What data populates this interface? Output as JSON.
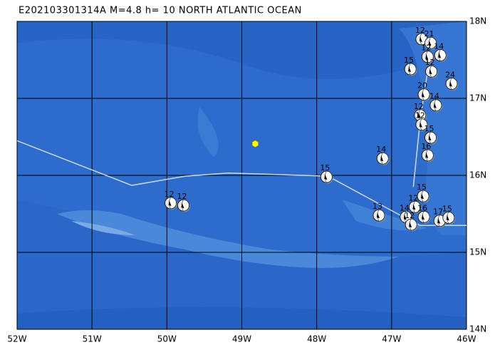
{
  "map": {
    "title": "E202103301314A M=4.8 h= 10 NORTH ATLANTIC OCEAN",
    "lon_range": [
      -52,
      -46
    ],
    "lat_range": [
      14,
      18
    ],
    "lon_ticks": [
      {
        "value": -52,
        "label": "52W"
      },
      {
        "value": -51,
        "label": "51W"
      },
      {
        "value": -50,
        "label": "50W"
      },
      {
        "value": -49,
        "label": "49W"
      },
      {
        "value": -48,
        "label": "48W"
      },
      {
        "value": -47,
        "label": "47W"
      },
      {
        "value": -46,
        "label": "46W"
      }
    ],
    "lat_ticks": [
      {
        "value": 14,
        "label": "14N"
      },
      {
        "value": 15,
        "label": "15N"
      },
      {
        "value": 16,
        "label": "16N"
      },
      {
        "value": 17,
        "label": "17N"
      },
      {
        "value": 18,
        "label": "18N"
      }
    ],
    "epicenter": {
      "lon": -48.82,
      "lat": 16.41,
      "color": "#ffff00"
    },
    "plate_boundary": {
      "color": "#d0d8e8",
      "lon": [
        -52,
        -50.47,
        -49.75,
        -49.18,
        -47.85,
        -46.92,
        -46.62,
        -46.0
      ],
      "lat": [
        16.45,
        15.87,
        15.99,
        16.03,
        15.99,
        15.5,
        15.35,
        15.35
      ]
    },
    "ridge_branch": {
      "lon": [
        -46.71,
        -46.62,
        -46.52
      ],
      "lat": [
        15.85,
        16.7,
        17.35
      ]
    },
    "events": [
      {
        "lon": -49.95,
        "lat": 15.64,
        "label": "12"
      },
      {
        "lon": -49.78,
        "lat": 15.61,
        "label": "12"
      },
      {
        "lon": -47.87,
        "lat": 15.98,
        "label": "15"
      },
      {
        "lon": -47.12,
        "lat": 16.22,
        "label": "14"
      },
      {
        "lon": -47.17,
        "lat": 15.48,
        "label": "13"
      },
      {
        "lon": -46.81,
        "lat": 15.46,
        "label": "14"
      },
      {
        "lon": -46.74,
        "lat": 15.36,
        "label": "12"
      },
      {
        "lon": -46.69,
        "lat": 15.59,
        "label": "12"
      },
      {
        "lon": -46.58,
        "lat": 15.73,
        "label": "15"
      },
      {
        "lon": -46.57,
        "lat": 15.46,
        "label": "16"
      },
      {
        "lon": -46.36,
        "lat": 15.41,
        "label": "17"
      },
      {
        "lon": -46.24,
        "lat": 15.45,
        "label": "15"
      },
      {
        "lon": -46.75,
        "lat": 17.38,
        "label": "15"
      },
      {
        "lon": -46.2,
        "lat": 17.19,
        "label": "24"
      },
      {
        "lon": -46.6,
        "lat": 17.77,
        "label": "12"
      },
      {
        "lon": -46.48,
        "lat": 17.72,
        "label": "21"
      },
      {
        "lon": -46.35,
        "lat": 17.56,
        "label": "14"
      },
      {
        "lon": -46.52,
        "lat": 17.54,
        "label": "12"
      },
      {
        "lon": -46.47,
        "lat": 17.35,
        "label": "12"
      },
      {
        "lon": -46.57,
        "lat": 17.05,
        "label": "20"
      },
      {
        "lon": -46.41,
        "lat": 16.91,
        "label": "14"
      },
      {
        "lon": -46.62,
        "lat": 16.78,
        "label": "12"
      },
      {
        "lon": -46.6,
        "lat": 16.66,
        "label": "12"
      },
      {
        "lon": -46.48,
        "lat": 16.49,
        "label": "15"
      },
      {
        "lon": -46.52,
        "lat": 16.26,
        "label": "16"
      }
    ]
  }
}
